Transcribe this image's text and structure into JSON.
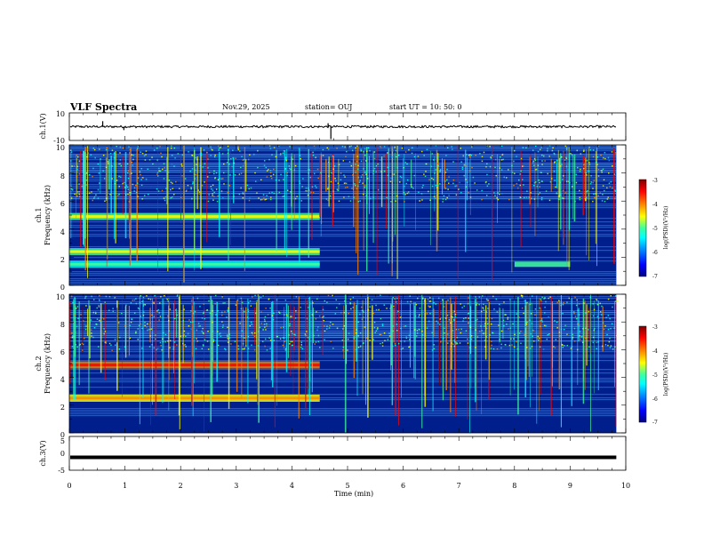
{
  "header": {
    "title": "VLF Spectra",
    "date": "Nov.29, 2025",
    "station": "station= OUJ",
    "start_ut": "start  UT  =   10: 50: 0"
  },
  "colors": {
    "spec_base": "#001e8c",
    "palette": [
      "#000083",
      "#0000ff",
      "#00a0ff",
      "#00ffff",
      "#40ff9f",
      "#ffff00",
      "#ff8000",
      "#ff0000",
      "#800000"
    ]
  },
  "chart_data": {
    "type": "heatmap",
    "xlabel": "Time  (min)",
    "x_ticks": [
      "0",
      "1",
      "2",
      "3",
      "4",
      "5",
      "6",
      "7",
      "8",
      "9",
      "10"
    ],
    "xlim": [
      0,
      10
    ],
    "data_end_min": 9.83,
    "panels": [
      {
        "id": "ch1-waveform",
        "type": "line",
        "ylabel": "ch.1(V)",
        "ylim": [
          -10,
          10
        ],
        "y_ticks": [
          "10",
          "-10"
        ],
        "baseline": 0,
        "spikes": [
          {
            "t": 0.6,
            "v": 4
          },
          {
            "t": 0.98,
            "v": -2.5
          },
          {
            "t": 4.65,
            "v": 2.5
          },
          {
            "t": 4.7,
            "v": -9
          }
        ]
      },
      {
        "id": "ch1-spectrogram",
        "type": "heatmap",
        "ylabel_top": "ch.1",
        "ylabel": "Frequency  (kHz)",
        "ylim": [
          0,
          10
        ],
        "y_ticks": [
          "0",
          "2",
          "4",
          "6",
          "8",
          "10"
        ],
        "bands_before_4_5min": [
          {
            "f_khz": 1.5,
            "level": -5.6
          },
          {
            "f_khz": 2.4,
            "level": -5.2
          },
          {
            "f_khz": 4.9,
            "level": -5.2
          }
        ],
        "band_late": {
          "t_start_min": 8.0,
          "t_end_min": 9.0,
          "f_khz": 1.5,
          "level": -4.8
        },
        "colorbar": {
          "label": "log(PSD)(V²/Hz)",
          "range": [
            -7,
            -3
          ],
          "ticks": [
            "-3",
            "-4",
            "-5",
            "-6",
            "-7"
          ]
        }
      },
      {
        "id": "ch2-spectrogram",
        "type": "heatmap",
        "ylabel_top": "ch.2",
        "ylabel": "Frequency  (kHz)",
        "ylim": [
          0,
          10
        ],
        "y_ticks": [
          "0",
          "2",
          "4",
          "6",
          "8",
          "10"
        ],
        "bands_before_4_5min": [
          {
            "f_khz": 2.5,
            "level": -4.7
          },
          {
            "f_khz": 4.9,
            "level": -4.2
          }
        ],
        "colorbar": {
          "label": "log(PSD)(V²/Hz)",
          "range": [
            -7,
            -3
          ],
          "ticks": [
            "-3",
            "-4",
            "-5",
            "-6",
            "-7"
          ]
        }
      },
      {
        "id": "ch3-waveform",
        "type": "line",
        "ylabel": "ch.3(V)",
        "ylim": [
          -5,
          5
        ],
        "y_ticks": [
          "5",
          "0",
          "-5"
        ],
        "baseline": -1.2
      }
    ]
  }
}
